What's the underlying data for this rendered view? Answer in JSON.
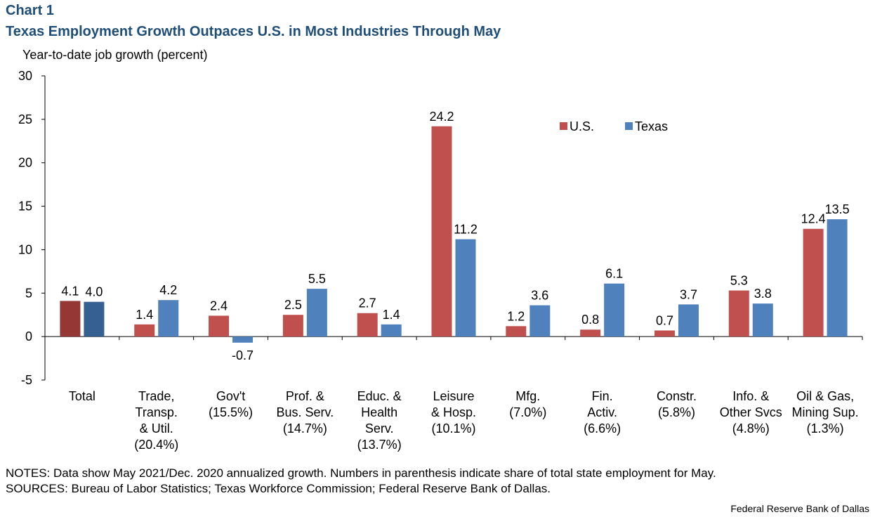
{
  "header": {
    "label": "Chart 1",
    "title": "Texas Employment  Growth Outpaces U.S. in Most Industries Through May",
    "y_axis_title": "Year-to-date job growth (percent)"
  },
  "footer": {
    "notes": "NOTES: Data show May 2021/Dec. 2020 annualized  growth. Numbers in parenthesis indicate share of total state employment  for May.",
    "sources": "SOURCES: Bureau of Labor Statistics; Texas Workforce Commission;  Federal Reserve Bank of Dallas.",
    "credit": "Federal Reserve  Bank of Dallas"
  },
  "chart_data": {
    "type": "bar",
    "categories": [
      [
        "Total"
      ],
      [
        "Trade,",
        "Transp.",
        "& Util.",
        "(20.4%)"
      ],
      [
        "Gov't",
        "(15.5%)"
      ],
      [
        "Prof. &",
        "Bus. Serv.",
        "(14.7%)"
      ],
      [
        "Educ. &",
        "Health",
        "Serv.",
        "(13.7%)"
      ],
      [
        "Leisure",
        "& Hosp.",
        "(10.1%)"
      ],
      [
        "Mfg.",
        "(7.0%)"
      ],
      [
        "Fin.",
        "Activ.",
        "(6.6%)"
      ],
      [
        "Constr.",
        "(5.8%)"
      ],
      [
        "Info. &",
        "Other Svcs",
        "(4.8%)"
      ],
      [
        "Oil & Gas,",
        "Mining Sup.",
        "(1.3%)"
      ]
    ],
    "series": [
      {
        "name": "U.S.",
        "color": "#c0504d",
        "first_color": "#953735",
        "values": [
          4.1,
          1.4,
          2.4,
          2.5,
          2.7,
          24.2,
          1.2,
          0.8,
          0.7,
          5.3,
          12.4
        ],
        "labels": [
          "4.1",
          "1.4",
          "2.4",
          "2.5",
          "2.7",
          "24.2",
          "1.2",
          "0.8",
          "0.7",
          "5.3",
          "12.4"
        ]
      },
      {
        "name": "Texas",
        "color": "#4f81bd",
        "first_color": "#366092",
        "values": [
          4.0,
          4.2,
          -0.7,
          5.5,
          1.4,
          11.2,
          3.6,
          6.1,
          3.7,
          3.8,
          13.5
        ],
        "labels": [
          "4.0",
          "4.2",
          "-0.7",
          "5.5",
          "1.4",
          "11.2",
          "3.6",
          "6.1",
          "3.7",
          "3.8",
          "13.5"
        ]
      }
    ],
    "ylim": [
      -5,
      30
    ],
    "yticks": [
      -5,
      0,
      5,
      10,
      15,
      20,
      25,
      30
    ],
    "grid": false,
    "legend_position": "top-right"
  }
}
